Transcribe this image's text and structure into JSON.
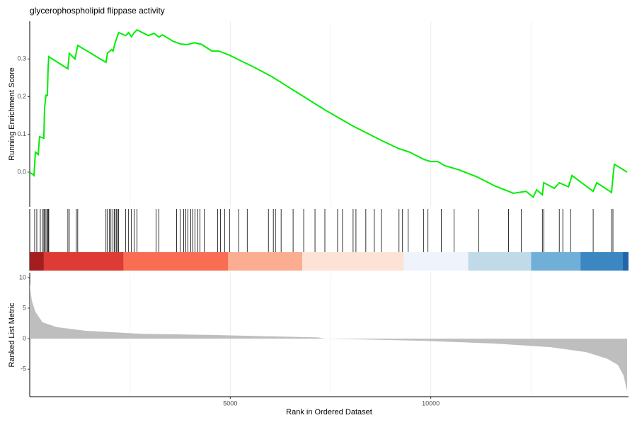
{
  "chart_data": {
    "type": "gsea",
    "title": "glycerophospholipid flippase activity",
    "ylabel": "Running Enrichment Score",
    "y2label": "Ranked List Metric",
    "xlabel": "Rank in Ordered Dataset",
    "xlim": [
      0,
      14930
    ],
    "xticks": [
      5000,
      10000
    ],
    "xminorticks": [
      2500,
      7500,
      12500
    ],
    "ylim": [
      -0.092,
      0.4
    ],
    "yticks": [
      {
        "value": 0,
        "label": "0.0"
      },
      0.1,
      0.2,
      0.3
    ],
    "y2lim": [
      -9.5,
      10.8
    ],
    "y2ticks": [
      -5,
      0,
      5,
      10
    ],
    "es_color": "#00ee00",
    "es_x": [
      0,
      106,
      141,
      211,
      246,
      352,
      370,
      405,
      440,
      458,
      475,
      951,
      986,
      1127,
      1197,
      1901,
      1937,
      2042,
      2077,
      2130,
      2218,
      2394,
      2465,
      2535,
      2606,
      2676,
      2958,
      3099,
      3222,
      3310,
      3574,
      3750,
      3926,
      4102,
      4278,
      4542,
      4718,
      4982,
      5246,
      5599,
      6039,
      6655,
      7359,
      8063,
      8768,
      9208,
      9472,
      9824,
      10000,
      10176,
      10352,
      10704,
      11162,
      11585,
      12060,
      12377,
      12553,
      12641,
      12782,
      12817,
      13081,
      13204,
      13433,
      13521,
      14049,
      14137,
      14507,
      14542,
      14577,
      14894
    ],
    "es_values": [
      0,
      -0.009,
      0.053,
      0.047,
      0.094,
      0.09,
      0.169,
      0.204,
      0.203,
      0.274,
      0.306,
      0.274,
      0.315,
      0.3,
      0.336,
      0.291,
      0.315,
      0.325,
      0.321,
      0.343,
      0.37,
      0.362,
      0.37,
      0.359,
      0.37,
      0.377,
      0.362,
      0.368,
      0.358,
      0.364,
      0.347,
      0.34,
      0.338,
      0.343,
      0.339,
      0.321,
      0.321,
      0.31,
      0.296,
      0.278,
      0.253,
      0.212,
      0.165,
      0.122,
      0.084,
      0.062,
      0.053,
      0.034,
      0.028,
      0.028,
      0.017,
      0.006,
      -0.013,
      -0.036,
      -0.056,
      -0.051,
      -0.066,
      -0.047,
      -0.06,
      -0.028,
      -0.043,
      -0.028,
      -0.039,
      -0.009,
      -0.051,
      -0.028,
      -0.054,
      -0.013,
      0.021,
      0
    ],
    "hit_color": "#000000",
    "hits": [
      123,
      176,
      264,
      317,
      352,
      370,
      405,
      440,
      458,
      475,
      951,
      986,
      1162,
      1197,
      1901,
      1937,
      1989,
      2025,
      2077,
      2113,
      2130,
      2165,
      2201,
      2218,
      2394,
      2465,
      2535,
      2606,
      2676,
      3151,
      3222,
      3662,
      3750,
      3838,
      3891,
      3944,
      4014,
      4067,
      4120,
      4190,
      4243,
      4349,
      4683,
      4754,
      4859,
      4982,
      5211,
      5423,
      5951,
      6074,
      6127,
      6268,
      6567,
      6831,
      7113,
      7359,
      7676,
      7799,
      8063,
      8134,
      8380,
      8592,
      8768,
      9208,
      9296,
      9437,
      9824,
      9930,
      10264,
      10581,
      11197,
      11937,
      12254,
      12782,
      12817,
      13204,
      13292,
      13486,
      14049,
      14507,
      14542
    ],
    "band_edges": [
      0,
      352,
      2342,
      4947,
      6796,
      9331,
      10933,
      12500,
      13732,
      14789,
      14930
    ],
    "band_colors": [
      "#a51d1f",
      "#dd3b33",
      "#f96d52",
      "#fbad92",
      "#fde3d6",
      "#eef3fc",
      "#c0dae8",
      "#70b0d8",
      "#3b87c2",
      "#2166ac"
    ],
    "metric_color": "#bebebe",
    "metric_x": [
      0,
      53,
      141,
      317,
      669,
      1373,
      2782,
      4542,
      7183,
      7359,
      9824,
      11585,
      12993,
      13873,
      14401,
      14665,
      14806,
      14894
    ],
    "metric_values": [
      9,
      6.2,
      4.4,
      2.7,
      1.9,
      1.3,
      0.8,
      0.6,
      0.2,
      0,
      -0.35,
      -0.8,
      -1.4,
      -2.2,
      -3.3,
      -4.3,
      -6,
      -8.6
    ]
  }
}
